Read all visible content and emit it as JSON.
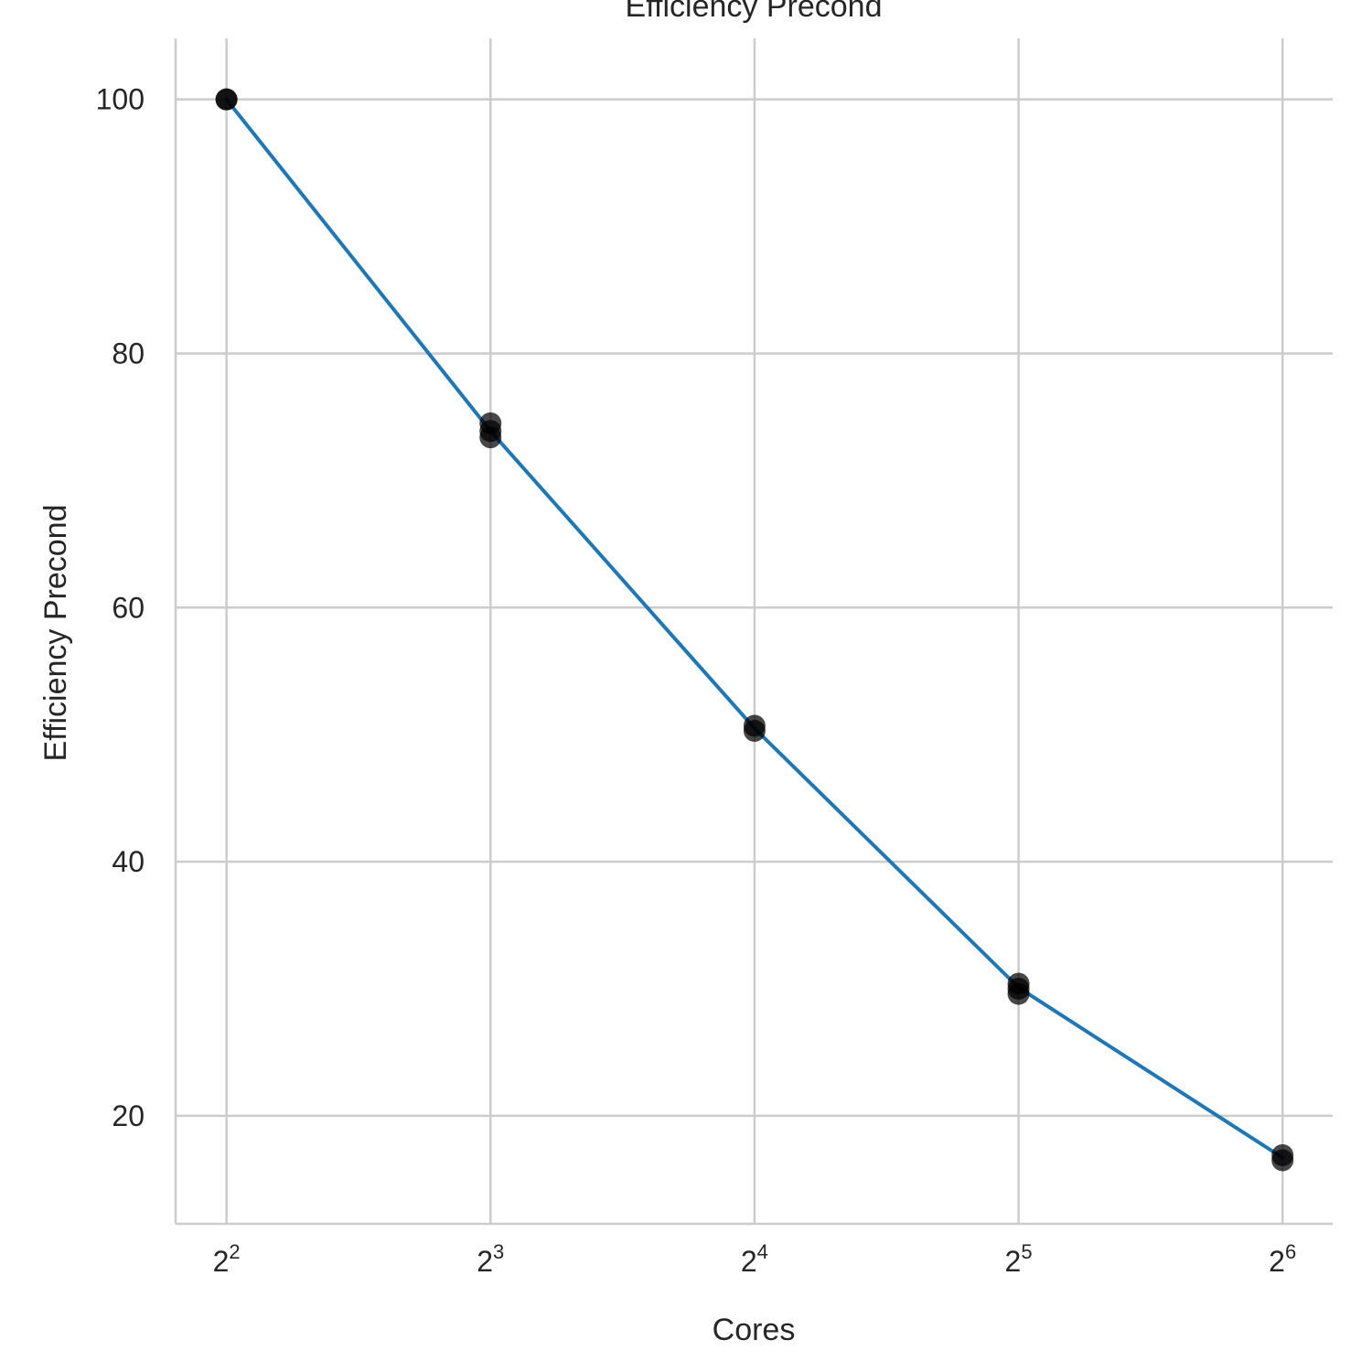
{
  "chart_data": {
    "type": "line",
    "title": "Efficiency Precond",
    "xlabel": "Cores",
    "ylabel": "Efficiency Precond",
    "x_scale": "log2",
    "x_ticks": [
      {
        "base": "2",
        "exp": "2",
        "value": 4
      },
      {
        "base": "2",
        "exp": "3",
        "value": 8
      },
      {
        "base": "2",
        "exp": "4",
        "value": 16
      },
      {
        "base": "2",
        "exp": "5",
        "value": 32
      },
      {
        "base": "2",
        "exp": "6",
        "value": 64
      }
    ],
    "y_ticks": [
      "20",
      "40",
      "60",
      "80",
      "100"
    ],
    "xlim": [
      3.5,
      73
    ],
    "ylim": [
      11.5,
      104.8
    ],
    "grid": true,
    "series": [
      {
        "color": "#1f77b4",
        "x": [
          4,
          8,
          16,
          32,
          64
        ],
        "y": [
          100,
          73.9,
          50.5,
          30.1,
          16.7
        ]
      }
    ],
    "points": {
      "color": "#000000",
      "x": [
        4,
        4,
        8,
        8,
        8,
        16,
        16,
        32,
        32,
        32,
        64,
        64
      ],
      "y": [
        100,
        100,
        74.5,
        73.9,
        73.4,
        50.7,
        50.3,
        30.4,
        30.0,
        29.6,
        16.9,
        16.5
      ]
    }
  }
}
